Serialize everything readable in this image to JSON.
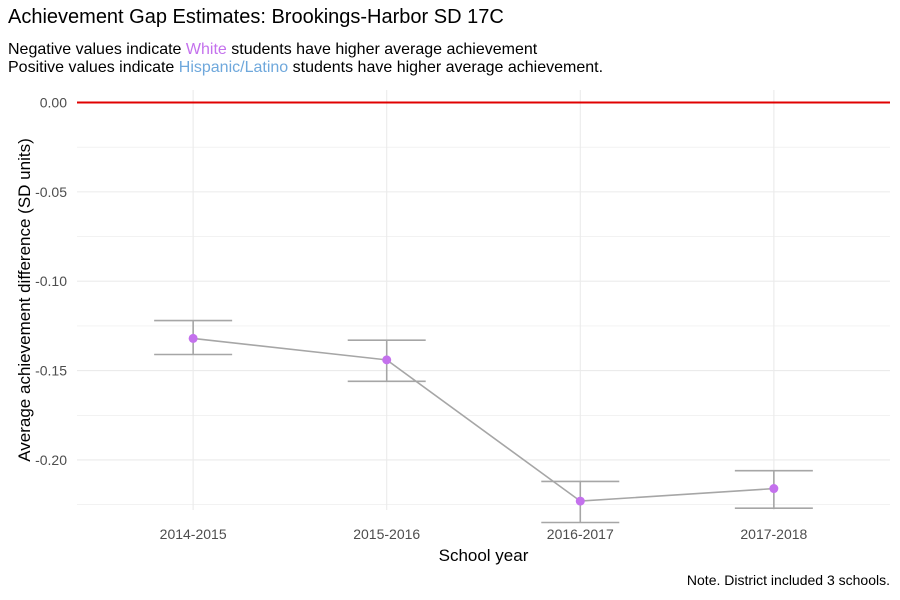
{
  "chart_data": {
    "type": "line",
    "title": "Achievement Gap Estimates: Brookings-Harbor SD 17C",
    "subtitle": {
      "line1": {
        "pre": "Negative values indicate ",
        "group": "White",
        "post": " students have higher average achievement"
      },
      "line2": {
        "pre": "Positive values indicate ",
        "group": "Hispanic/Latino",
        "post": " students have higher average achievement."
      }
    },
    "xlabel": "School year",
    "ylabel": "Average achievement difference (SD units)",
    "caption": "Note. District included 3 schools.",
    "categories": [
      "2014-2015",
      "2015-2016",
      "2016-2017",
      "2017-2018"
    ],
    "values": [
      -0.132,
      -0.144,
      -0.223,
      -0.216
    ],
    "ci_lower": [
      -0.141,
      -0.156,
      -0.235,
      -0.227
    ],
    "ci_upper": [
      -0.122,
      -0.133,
      -0.212,
      -0.206
    ],
    "reference_line": 0,
    "ylim": [
      -0.228,
      0.007
    ],
    "yticks": [
      0,
      -0.05,
      -0.1,
      -0.15,
      -0.2
    ],
    "ytick_labels": [
      "0.00",
      "-0.05",
      "-0.10",
      "-0.15",
      "-0.20"
    ],
    "grid": true,
    "colors": {
      "point": "#c471ed",
      "line": "#a6a6a6",
      "errorbar": "#a6a6a6",
      "reference": "#e00000",
      "grid": "#ebebeb",
      "white_group": "#c471ed",
      "hispanic_group": "#6fa8dc"
    }
  }
}
